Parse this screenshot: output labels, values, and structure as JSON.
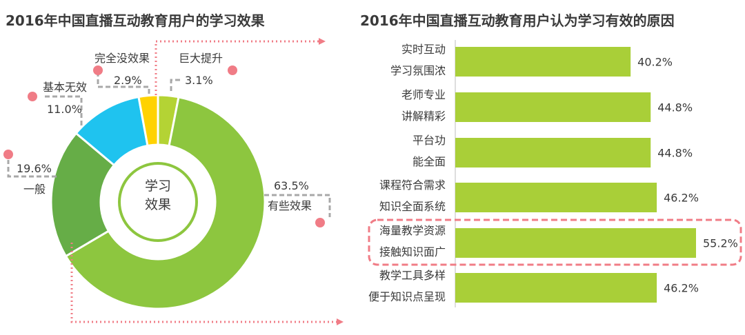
{
  "colors": {
    "green_light": "#8dc63f",
    "green_dark": "#66ad47",
    "cyan": "#1fc3ef",
    "yellow": "#ffd200",
    "lime": "#b4d334",
    "bar": "#a9cf38",
    "dot": "#f07c86",
    "title": "#3a3a3a",
    "text": "#3a3a3a"
  },
  "chart_data": [
    {
      "type": "pie",
      "title": "2016年中国直播互动教育用户的学习效果",
      "center_label": [
        "学习",
        "效果"
      ],
      "slices": [
        {
          "label": "巨大提升",
          "value": 3.1,
          "value_text": "3.1%",
          "color_key": "lime"
        },
        {
          "label": "有些效果",
          "value": 63.5,
          "value_text": "63.5%",
          "color_key": "green_light"
        },
        {
          "label": "一般",
          "value": 19.6,
          "value_text": "19.6%",
          "color_key": "green_dark"
        },
        {
          "label": "基本无效",
          "value": 11.0,
          "value_text": "11.0%",
          "color_key": "cyan"
        },
        {
          "label": "完全没效果",
          "value": 2.9,
          "value_text": "2.9%",
          "color_key": "yellow"
        }
      ]
    },
    {
      "type": "bar",
      "orientation": "horizontal",
      "title": "2016年中国直播互动教育用户认为学习有效的原因",
      "categories": [
        [
          "实时互动",
          "学习氛围浓"
        ],
        [
          "老师专业",
          "讲解精彩"
        ],
        [
          "平台功",
          "能全面"
        ],
        [
          "课程符合需求",
          "知识全面系统"
        ],
        [
          "海量教学资源",
          "接触知识面广"
        ],
        [
          "教学工具多样",
          "便于知识点呈现"
        ]
      ],
      "values": [
        40.2,
        44.8,
        44.8,
        46.2,
        55.2,
        46.2
      ],
      "value_labels": [
        "40.2%",
        "44.8%",
        "44.8%",
        "46.2%",
        "55.2%",
        "46.2%"
      ],
      "xlim": [
        0,
        60
      ],
      "highlight_index": 4
    }
  ]
}
